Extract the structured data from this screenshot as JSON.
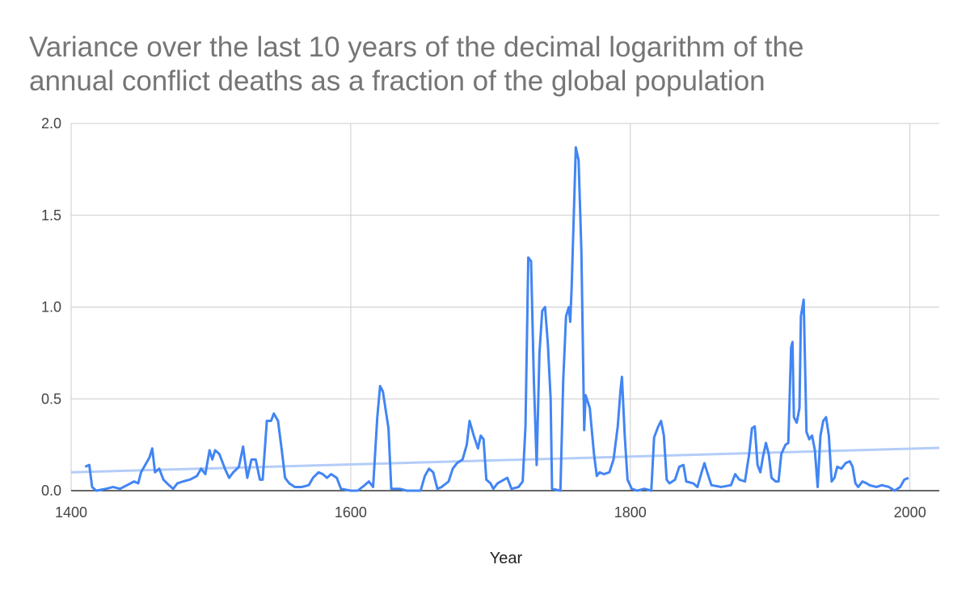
{
  "chart_data": {
    "type": "line",
    "title": [
      "Variance over the last 10 years of the decimal logarithm of the",
      "annual conflict deaths as a fraction of the global population"
    ],
    "x_label": "Year",
    "xlim": [
      1400,
      2021
    ],
    "xticks": [
      1400,
      1600,
      1800,
      2000
    ],
    "ylim": [
      0,
      2
    ],
    "yticks": [
      {
        "value": 0,
        "label": "0.0"
      },
      0.5,
      {
        "value": 1,
        "label": "1.0"
      },
      1.5,
      {
        "value": 2,
        "label": "2.0"
      }
    ],
    "grid": true,
    "x": [
      1410,
      1413,
      1415,
      1418,
      1425,
      1430,
      1435,
      1440,
      1445,
      1448,
      1450,
      1453,
      1456,
      1458,
      1460,
      1463,
      1466,
      1470,
      1473,
      1476,
      1480,
      1485,
      1490,
      1493,
      1496,
      1499,
      1501,
      1503,
      1506,
      1510,
      1513,
      1516,
      1520,
      1523,
      1526,
      1529,
      1532,
      1535,
      1537,
      1540,
      1543,
      1545,
      1548,
      1551,
      1553,
      1556,
      1560,
      1565,
      1570,
      1573,
      1577,
      1580,
      1583,
      1586,
      1590,
      1593,
      1600,
      1605,
      1610,
      1613,
      1616,
      1619,
      1621,
      1623,
      1627,
      1629,
      1635,
      1640,
      1650,
      1653,
      1656,
      1659,
      1662,
      1665,
      1670,
      1673,
      1676,
      1680,
      1683,
      1685,
      1688,
      1691,
      1693,
      1695,
      1697,
      1700,
      1702,
      1705,
      1712,
      1715,
      1720,
      1723,
      1725,
      1727,
      1729,
      1731,
      1733,
      1735,
      1737,
      1739,
      1741,
      1743,
      1744,
      1750,
      1752,
      1754,
      1756,
      1757,
      1758,
      1761,
      1763,
      1765,
      1767,
      1768,
      1771,
      1774,
      1776,
      1778,
      1781,
      1785,
      1788,
      1791,
      1793,
      1794,
      1796,
      1798,
      1801,
      1805,
      1810,
      1815,
      1817,
      1820,
      1822,
      1824,
      1826,
      1828,
      1832,
      1835,
      1838,
      1840,
      1845,
      1848,
      1851,
      1853,
      1855,
      1858,
      1865,
      1872,
      1875,
      1878,
      1882,
      1885,
      1887,
      1889,
      1891,
      1893,
      1895,
      1897,
      1899,
      1901,
      1904,
      1906,
      1908,
      1911,
      1913,
      1915,
      1916,
      1917,
      1919,
      1921,
      1922,
      1924,
      1926,
      1928,
      1930,
      1932,
      1934,
      1936,
      1938,
      1940,
      1942,
      1944,
      1946,
      1948,
      1951,
      1954,
      1957,
      1959,
      1961,
      1963,
      1966,
      1969,
      1971,
      1976,
      1980,
      1985,
      1989,
      1993,
      1996,
      1999
    ],
    "series": [
      {
        "color": "#4285f4",
        "values": [
          0.13,
          0.14,
          0.02,
          0.0,
          0.01,
          0.02,
          0.01,
          0.03,
          0.05,
          0.04,
          0.1,
          0.14,
          0.18,
          0.23,
          0.1,
          0.12,
          0.06,
          0.03,
          0.01,
          0.04,
          0.05,
          0.06,
          0.08,
          0.12,
          0.09,
          0.22,
          0.17,
          0.22,
          0.2,
          0.12,
          0.07,
          0.1,
          0.13,
          0.24,
          0.07,
          0.17,
          0.17,
          0.06,
          0.06,
          0.38,
          0.38,
          0.42,
          0.38,
          0.2,
          0.07,
          0.04,
          0.02,
          0.02,
          0.03,
          0.07,
          0.1,
          0.09,
          0.07,
          0.09,
          0.07,
          0.01,
          0.0,
          0.0,
          0.03,
          0.05,
          0.02,
          0.4,
          0.57,
          0.54,
          0.34,
          0.01,
          0.01,
          0.0,
          0.0,
          0.08,
          0.12,
          0.1,
          0.01,
          0.02,
          0.05,
          0.12,
          0.15,
          0.17,
          0.25,
          0.38,
          0.3,
          0.23,
          0.3,
          0.28,
          0.06,
          0.04,
          0.01,
          0.04,
          0.07,
          0.01,
          0.02,
          0.05,
          0.35,
          1.27,
          1.25,
          0.6,
          0.14,
          0.75,
          0.98,
          1.0,
          0.8,
          0.5,
          0.01,
          0.0,
          0.6,
          0.95,
          1.0,
          0.92,
          1.1,
          1.87,
          1.8,
          1.3,
          0.33,
          0.52,
          0.45,
          0.2,
          0.08,
          0.1,
          0.09,
          0.1,
          0.17,
          0.35,
          0.55,
          0.62,
          0.3,
          0.06,
          0.01,
          0.0,
          0.01,
          0.0,
          0.29,
          0.35,
          0.38,
          0.3,
          0.06,
          0.04,
          0.06,
          0.13,
          0.14,
          0.05,
          0.04,
          0.02,
          0.1,
          0.15,
          0.1,
          0.03,
          0.02,
          0.03,
          0.09,
          0.06,
          0.05,
          0.2,
          0.34,
          0.35,
          0.14,
          0.1,
          0.19,
          0.26,
          0.2,
          0.07,
          0.05,
          0.05,
          0.2,
          0.25,
          0.26,
          0.78,
          0.81,
          0.4,
          0.37,
          0.45,
          0.95,
          1.04,
          0.32,
          0.28,
          0.3,
          0.22,
          0.02,
          0.3,
          0.38,
          0.4,
          0.3,
          0.05,
          0.07,
          0.13,
          0.12,
          0.15,
          0.16,
          0.13,
          0.04,
          0.02,
          0.05,
          0.04,
          0.03,
          0.02,
          0.03,
          0.02,
          0.0,
          0.02,
          0.06,
          0.07
        ]
      }
    ],
    "trendline": {
      "color": "#b3cdf8",
      "x": [
        1400,
        2021
      ],
      "values": [
        0.1,
        0.233
      ]
    }
  }
}
